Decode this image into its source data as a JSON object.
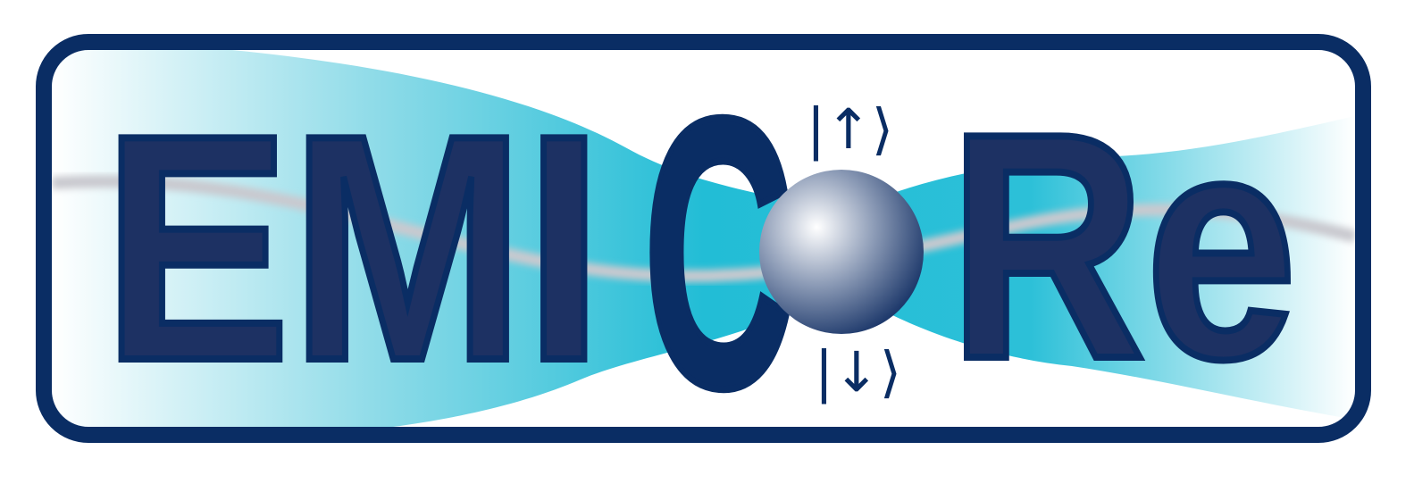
{
  "logo": {
    "left": "EMI",
    "center": "C",
    "right": "Re",
    "ket_up": "|↑⟩",
    "ket_down": "|↓⟩"
  }
}
